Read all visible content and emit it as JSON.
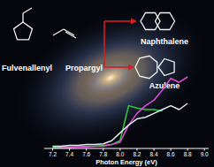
{
  "chart_data": {
    "type": "line",
    "xlabel": "Photon Energy (eV)",
    "annotations": [
      {
        "text": "Fulvenallenyl"
      },
      {
        "text": "Propargyl"
      },
      {
        "text": "Naphthalene"
      },
      {
        "text": "Azulene"
      }
    ],
    "x": [
      7.2,
      7.3,
      7.4,
      7.5,
      7.6,
      7.7,
      7.8,
      7.9,
      8.0,
      8.1,
      8.2,
      8.3,
      8.4,
      8.5,
      8.6,
      8.7,
      8.8
    ],
    "series": [
      {
        "color": "#2ecc40",
        "values": [
          0.02,
          0.02,
          0.02,
          0.02,
          0.03,
          0.03,
          0.04,
          0.05,
          0.1,
          0.55,
          0.52,
          0.5,
          0.5,
          0.48,
          null,
          null,
          null
        ]
      },
      {
        "color": "#e24bd6",
        "values": [
          0.0,
          0.01,
          0.01,
          0.02,
          0.02,
          0.03,
          0.03,
          0.05,
          0.08,
          0.3,
          0.45,
          0.55,
          0.62,
          0.75,
          0.9,
          0.85,
          0.92
        ]
      },
      {
        "color": "#e8e8f0",
        "values": [
          0.03,
          0.03,
          0.04,
          0.04,
          0.05,
          0.05,
          0.06,
          0.1,
          0.2,
          0.3,
          0.38,
          0.4,
          0.45,
          0.5,
          0.55,
          0.5,
          0.58
        ]
      }
    ],
    "xlim": [
      7.1,
      9.05
    ],
    "ylim": [
      0,
      1
    ],
    "xticks": [
      7.2,
      7.4,
      7.6,
      7.8,
      {
        "value": 8,
        "label": "8.0"
      },
      8.2,
      8.4,
      8.6,
      8.8,
      {
        "value": 9,
        "label": "9.0"
      }
    ],
    "tick_labels": "x",
    "grid": false
  }
}
